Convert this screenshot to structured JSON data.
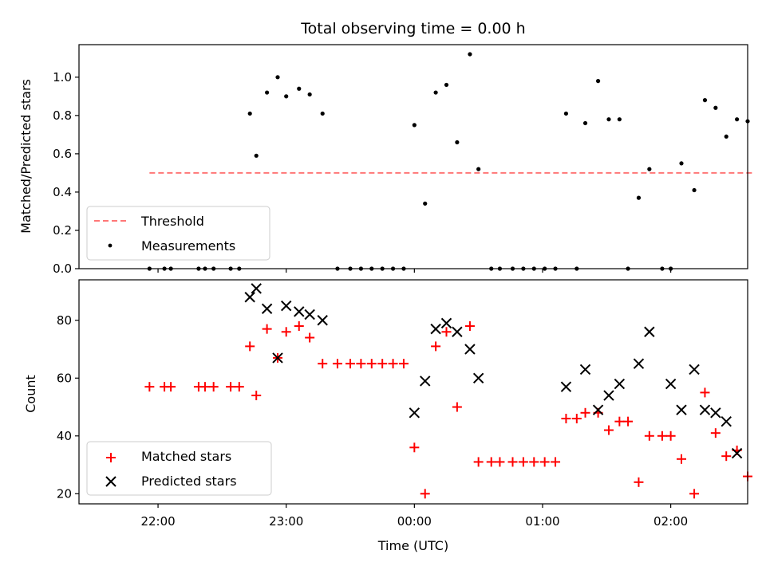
{
  "chart_data": [
    {
      "type": "scatter",
      "title": "Total observing time = 0.00 h",
      "xlabel": "",
      "ylabel": "Matched/Predicted stars",
      "ylim": [
        0,
        1.17
      ],
      "yticks": [
        0.0,
        0.2,
        0.4,
        0.6,
        0.8,
        1.0
      ],
      "ytick_labels": [
        "0.0",
        "0.2",
        "0.4",
        "0.6",
        "0.8",
        "1.0"
      ],
      "x_unit": "minutes after 22:00 UTC",
      "xlim": [
        -37,
        276
      ],
      "xticks": [
        0,
        60,
        120,
        180,
        240
      ],
      "xtick_labels": [
        "22:00",
        "23:00",
        "00:00",
        "01:00",
        "02:00"
      ],
      "legend": {
        "position": "lower-left",
        "entries": [
          "Threshold",
          "Measurements"
        ]
      },
      "threshold": {
        "name": "Threshold",
        "value": 0.5,
        "x_range": [
          -4,
          279
        ],
        "color": "#ff7777"
      },
      "series": [
        {
          "name": "Measurements",
          "color": "#000000",
          "x": [
            -4,
            3,
            6,
            19,
            22,
            26,
            34,
            38,
            43,
            46,
            51,
            56,
            60,
            66,
            71,
            77,
            84,
            90,
            95,
            100,
            105,
            110,
            115,
            120,
            125,
            130,
            135,
            140,
            146,
            150,
            156,
            160,
            166,
            171,
            176,
            181,
            186,
            191,
            196,
            200,
            206,
            211,
            216,
            220,
            225,
            230,
            236,
            240,
            245,
            251,
            256,
            261,
            266,
            271,
            276
          ],
          "y": [
            0.0,
            0.0,
            0.0,
            0.0,
            0.0,
            0.0,
            0.0,
            0.0,
            0.81,
            0.59,
            0.92,
            1.0,
            0.9,
            0.94,
            0.91,
            0.81,
            0.0,
            0.0,
            0.0,
            0.0,
            0.0,
            0.0,
            0.0,
            0.75,
            0.34,
            0.92,
            0.96,
            0.66,
            1.12,
            0.52,
            0.0,
            0.0,
            0.0,
            0.0,
            0.0,
            0.0,
            0.0,
            0.81,
            0.0,
            0.76,
            0.98,
            0.78,
            0.78,
            0.0,
            0.37,
            0.52,
            0.0,
            0.0,
            0.55,
            0.41,
            0.88,
            0.84,
            0.69,
            0.78,
            0.77
          ]
        }
      ]
    },
    {
      "type": "scatter",
      "title": "",
      "xlabel": "Time (UTC)",
      "ylabel": "Count",
      "ylim": [
        16.5,
        94
      ],
      "yticks": [
        20,
        40,
        60,
        80
      ],
      "ytick_labels": [
        "20",
        "40",
        "60",
        "80"
      ],
      "x_unit": "minutes after 22:00 UTC",
      "xlim": [
        -37,
        276
      ],
      "xticks": [
        0,
        60,
        120,
        180,
        240
      ],
      "xtick_labels": [
        "22:00",
        "23:00",
        "00:00",
        "01:00",
        "02:00"
      ],
      "legend": {
        "position": "lower-left",
        "entries": [
          "Matched stars",
          "Predicted stars"
        ]
      },
      "series": [
        {
          "name": "Matched stars",
          "color": "#ff0000",
          "marker": "plus",
          "x": [
            -4,
            3,
            6,
            19,
            22,
            26,
            34,
            38,
            43,
            46,
            51,
            56,
            60,
            66,
            71,
            77,
            84,
            90,
            95,
            100,
            105,
            110,
            115,
            120,
            125,
            130,
            135,
            140,
            146,
            150,
            156,
            160,
            166,
            171,
            176,
            181,
            186,
            191,
            196,
            200,
            206,
            211,
            216,
            220,
            225,
            230,
            236,
            240,
            245,
            251,
            256,
            261,
            266,
            271,
            276
          ],
          "y": [
            57,
            57,
            57,
            57,
            57,
            57,
            57,
            57,
            71,
            54,
            77,
            67,
            76,
            78,
            74,
            65,
            65,
            65,
            65,
            65,
            65,
            65,
            65,
            36,
            20,
            71,
            76,
            50,
            78,
            31,
            31,
            31,
            31,
            31,
            31,
            31,
            31,
            46,
            46,
            48,
            48,
            42,
            45,
            45,
            24,
            40,
            40,
            40,
            32,
            20,
            55,
            41,
            33,
            35,
            26
          ]
        },
        {
          "name": "Predicted stars",
          "color": "#000000",
          "marker": "x",
          "x": [
            43,
            46,
            51,
            56,
            60,
            66,
            71,
            77,
            120,
            125,
            130,
            135,
            140,
            146,
            150,
            191,
            200,
            206,
            211,
            216,
            225,
            230,
            240,
            245,
            251,
            256,
            261,
            266,
            271
          ],
          "y": [
            88,
            91,
            84,
            67,
            85,
            83,
            82,
            80,
            48,
            59,
            77,
            79,
            76,
            70,
            60,
            57,
            63,
            49,
            54,
            58,
            65,
            76,
            58,
            49,
            63,
            49,
            48,
            45,
            34
          ]
        }
      ]
    }
  ]
}
